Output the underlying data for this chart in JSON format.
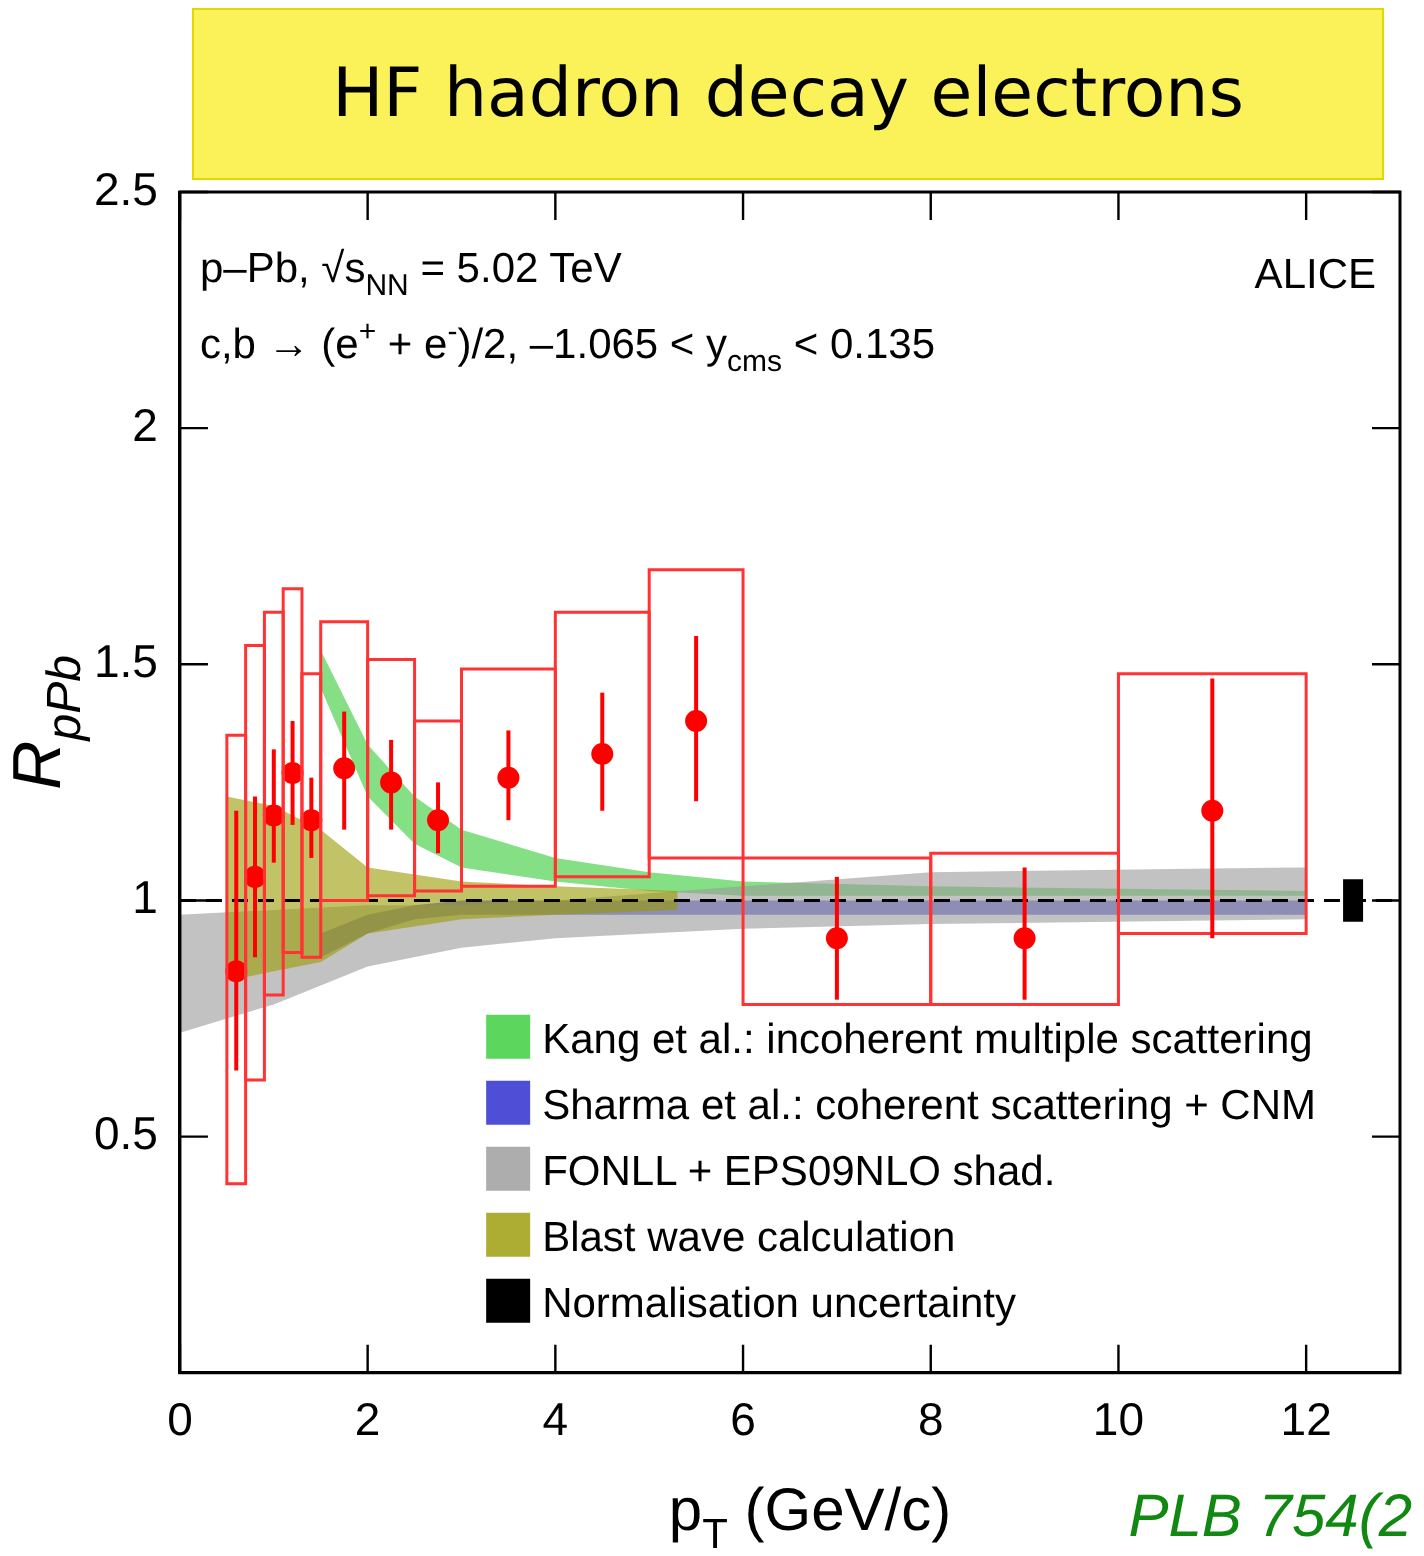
{
  "chart_data": {
    "type": "scatter",
    "title": "HF hadron decay electrons",
    "xlabel": "p$_{T}$ (GeV/c)",
    "ylabel": "R$_{pPb}$",
    "annotations": [
      "p–Pb, √s$_{NN}$ = 5.02 TeV",
      "c,b → (e$^{+}$ + e$^{-}$)/2, –1.065 < y$_{cms}$ < 0.135",
      "ALICE",
      "PLB 754(2"
    ],
    "xlim": [
      0,
      13
    ],
    "xticks": [
      0,
      2,
      4,
      6,
      8,
      10,
      12
    ],
    "ylim": [
      0,
      2.5
    ],
    "yticks": [
      {
        "value": 0,
        "label": null
      },
      0.5,
      1,
      1.5,
      2,
      2.5
    ],
    "grid": false,
    "legend": "bottom right",
    "ref_lines": [
      {
        "axis": "y",
        "value": 1,
        "line_style": "dashed",
        "color": "#000000"
      }
    ],
    "series": [
      {
        "name": "Kang et al.: incoherent multiple scattering",
        "type": "line",
        "color": "#33cc33",
        "x": [
          1.5,
          2,
          2.5,
          3,
          4,
          5,
          6,
          8,
          12
        ],
        "lower": [
          1.45,
          1.22,
          1.12,
          1.07,
          1.04,
          1.02,
          1.01,
          1.01,
          1.01
        ],
        "upper": [
          1.53,
          1.33,
          1.22,
          1.15,
          1.09,
          1.06,
          1.04,
          1.03,
          1.02
        ],
        "values": [
          null,
          null,
          null,
          null,
          null,
          null,
          null,
          null,
          null
        ]
      },
      {
        "name": "Sharma et al.: coherent scattering + CNM",
        "type": "line",
        "color": "#2222cc",
        "x": [
          1.5,
          2,
          2.5,
          3,
          12
        ],
        "lower": [
          0.88,
          0.93,
          0.96,
          0.97,
          0.97
        ],
        "upper": [
          0.93,
          0.97,
          0.99,
          1.0,
          1.0
        ],
        "values": [
          null,
          null,
          null,
          null,
          null
        ]
      },
      {
        "name": "FONLL + EPS09NLO shad.",
        "type": "line",
        "color": "#999999",
        "x": [
          0,
          1,
          2,
          3,
          4,
          6,
          8,
          12
        ],
        "lower": [
          0.72,
          0.78,
          0.86,
          0.9,
          0.92,
          0.94,
          0.95,
          0.96
        ],
        "upper": [
          0.97,
          0.98,
          0.99,
          0.99,
          1.0,
          1.03,
          1.06,
          1.07
        ],
        "values": [
          null,
          null,
          null,
          null,
          null,
          null,
          null,
          null
        ]
      },
      {
        "name": "Blast wave calculation",
        "type": "line",
        "color": "#999900",
        "x": [
          0.5,
          1,
          1.5,
          2,
          3,
          4,
          5.3
        ],
        "lower": [
          0.83,
          0.85,
          0.87,
          0.93,
          0.96,
          0.97,
          0.98
        ],
        "upper": [
          1.22,
          1.2,
          1.15,
          1.07,
          1.04,
          1.03,
          1.02
        ],
        "values": [
          null,
          null,
          null,
          null,
          null,
          null,
          null
        ]
      },
      {
        "name": "Normalisation uncertainty",
        "type": "bar",
        "color": "#000000",
        "x": [
          12.5
        ],
        "base": [
          0.955
        ],
        "values": [
          0.09
        ]
      },
      {
        "type": "histogram",
        "color": "#ff3333",
        "bins": [
          0.5,
          0.7,
          0.9,
          1.1,
          1.3,
          1.5,
          2,
          2.5,
          3,
          4,
          5,
          6,
          8,
          10,
          12
        ],
        "base": [
          0.4,
          0.62,
          0.8,
          0.89,
          0.88,
          1.0,
          1.01,
          1.02,
          1.03,
          1.05,
          1.09,
          0.78,
          0.78,
          0.93
        ],
        "values": [
          0.95,
          0.92,
          0.81,
          0.77,
          0.6,
          0.59,
          0.5,
          0.36,
          0.46,
          0.56,
          0.61,
          0.31,
          0.32,
          0.55
        ]
      },
      {
        "color": "#ff0000",
        "marker": "circle",
        "x": [
          0.6,
          0.8,
          1.0,
          1.2,
          1.4,
          1.75,
          2.25,
          2.75,
          3.5,
          4.5,
          5.5,
          7,
          9,
          11
        ],
        "values": [
          0.85,
          1.05,
          1.18,
          1.27,
          1.17,
          1.28,
          1.25,
          1.17,
          1.26,
          1.31,
          1.38,
          0.92,
          0.92,
          1.19
        ],
        "errors": [
          [
            0.64,
            1.19
          ],
          [
            0.88,
            1.22
          ],
          [
            1.08,
            1.32
          ],
          [
            1.16,
            1.38
          ],
          [
            1.09,
            1.26
          ],
          [
            1.15,
            1.4
          ],
          [
            1.15,
            1.34
          ],
          [
            1.1,
            1.25
          ],
          [
            1.17,
            1.36
          ],
          [
            1.19,
            1.44
          ],
          [
            1.21,
            1.56
          ],
          [
            0.79,
            1.05
          ],
          [
            0.79,
            1.07
          ],
          [
            0.92,
            1.47
          ]
        ]
      }
    ]
  }
}
